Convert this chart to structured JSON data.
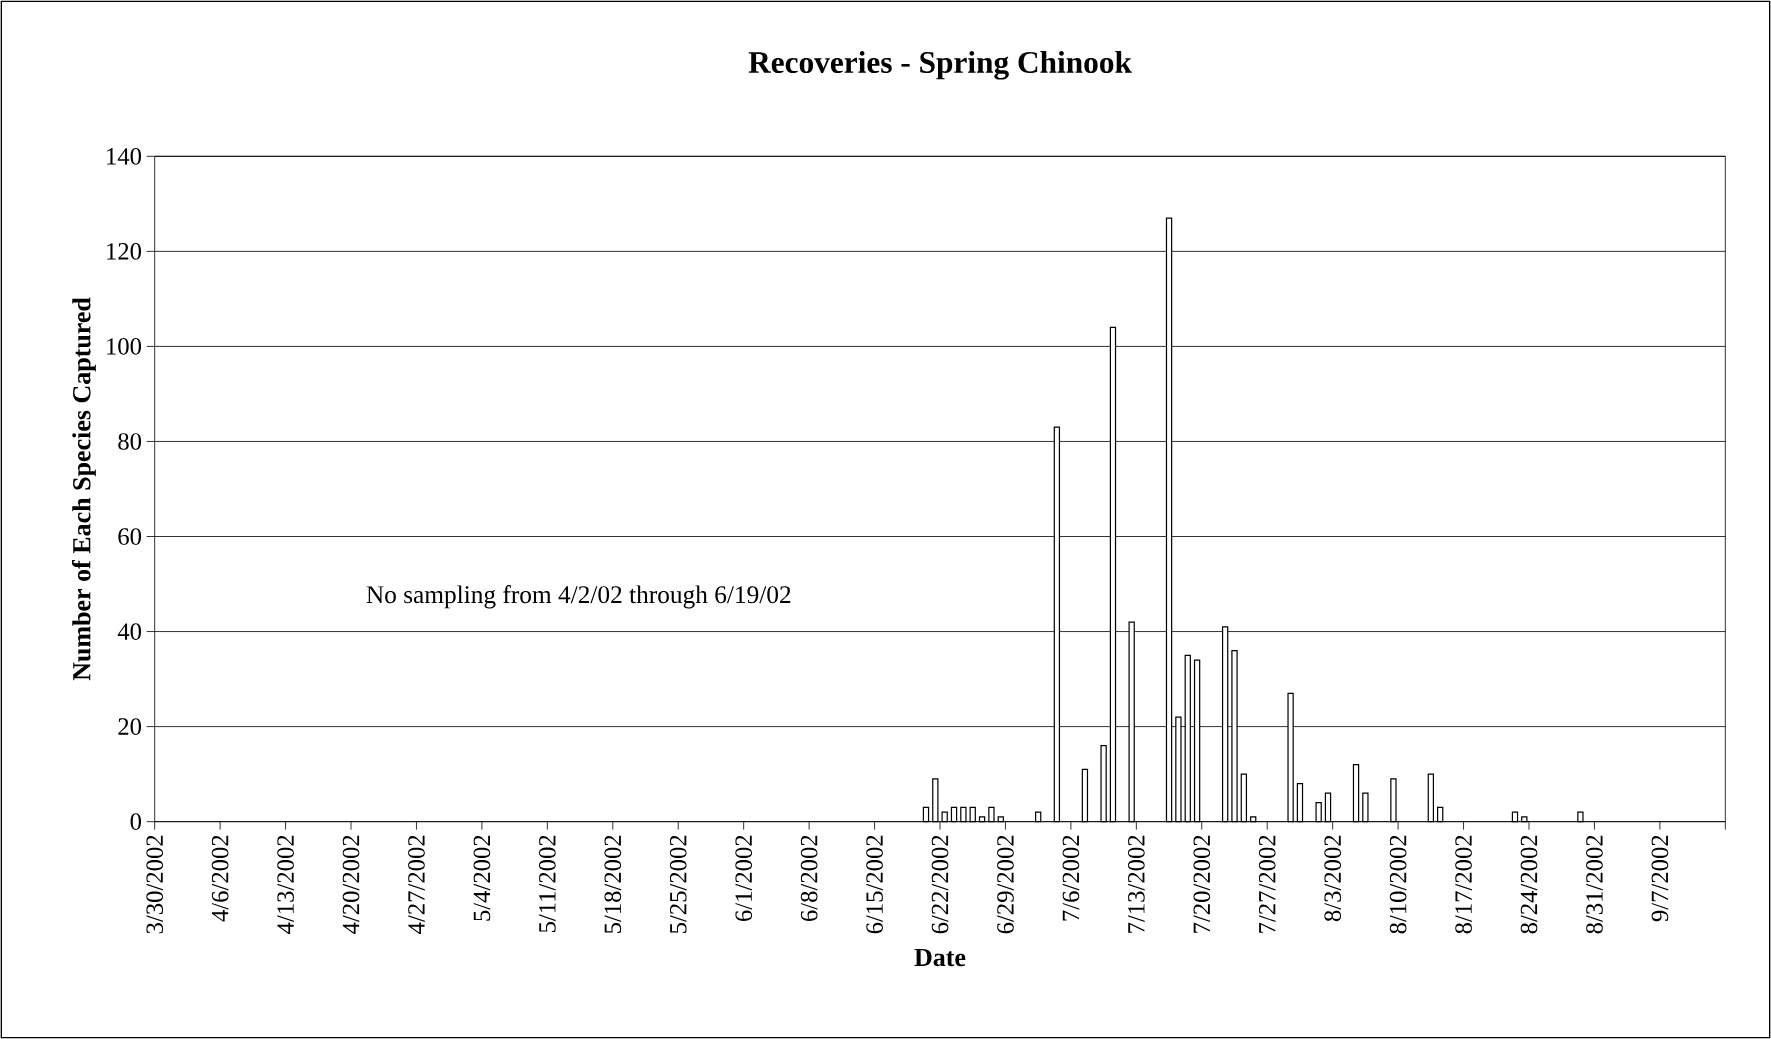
{
  "chart_data": {
    "type": "bar",
    "title": "Recoveries - Spring Chinook",
    "xlabel": "Date",
    "ylabel": "Number of Each Species Captured",
    "x": [
      "2002-06-20",
      "2002-06-21",
      "2002-06-22",
      "2002-06-23",
      "2002-06-24",
      "2002-06-25",
      "2002-06-26",
      "2002-06-27",
      "2002-06-28",
      "2002-07-02",
      "2002-07-04",
      "2002-07-07",
      "2002-07-09",
      "2002-07-10",
      "2002-07-12",
      "2002-07-16",
      "2002-07-17",
      "2002-07-18",
      "2002-07-19",
      "2002-07-22",
      "2002-07-23",
      "2002-07-24",
      "2002-07-25",
      "2002-07-29",
      "2002-07-30",
      "2002-08-01",
      "2002-08-02",
      "2002-08-05",
      "2002-08-06",
      "2002-08-09",
      "2002-08-13",
      "2002-08-14",
      "2002-08-22",
      "2002-08-23",
      "2002-08-29"
    ],
    "values": [
      3,
      9,
      2,
      3,
      3,
      3,
      1,
      3,
      1,
      2,
      83,
      11,
      16,
      104,
      42,
      127,
      22,
      35,
      34,
      41,
      36,
      10,
      1,
      27,
      8,
      4,
      6,
      12,
      6,
      9,
      10,
      3,
      2,
      1,
      2
    ],
    "color": "#ffffff",
    "xlim": [
      "2002-03-30",
      "2002-09-14"
    ],
    "xticks": [
      {
        "value": "2002-03-30",
        "label": "3/30/2002"
      },
      {
        "value": "2002-04-06",
        "label": "4/6/2002"
      },
      {
        "value": "2002-04-13",
        "label": "4/13/2002"
      },
      {
        "value": "2002-04-20",
        "label": "4/20/2002"
      },
      {
        "value": "2002-04-27",
        "label": "4/27/2002"
      },
      {
        "value": "2002-05-04",
        "label": "5/4/2002"
      },
      {
        "value": "2002-05-11",
        "label": "5/11/2002"
      },
      {
        "value": "2002-05-18",
        "label": "5/18/2002"
      },
      {
        "value": "2002-05-25",
        "label": "5/25/2002"
      },
      {
        "value": "2002-06-01",
        "label": "6/1/2002"
      },
      {
        "value": "2002-06-08",
        "label": "6/8/2002"
      },
      {
        "value": "2002-06-15",
        "label": "6/15/2002"
      },
      {
        "value": "2002-06-22",
        "label": "6/22/2002"
      },
      {
        "value": "2002-06-29",
        "label": "6/29/2002"
      },
      {
        "value": "2002-07-06",
        "label": "7/6/2002"
      },
      {
        "value": "2002-07-13",
        "label": "7/13/2002"
      },
      {
        "value": "2002-07-20",
        "label": "7/20/2002"
      },
      {
        "value": "2002-07-27",
        "label": "7/27/2002"
      },
      {
        "value": "2002-08-03",
        "label": "8/3/2002"
      },
      {
        "value": "2002-08-10",
        "label": "8/10/2002"
      },
      {
        "value": "2002-08-17",
        "label": "8/17/2002"
      },
      {
        "value": "2002-08-24",
        "label": "8/24/2002"
      },
      {
        "value": "2002-08-31",
        "label": "8/31/2002"
      },
      {
        "value": "2002-09-07",
        "label": "9/7/2002"
      },
      {
        "value": "2002-09-14",
        "label": null
      }
    ],
    "ylim": [
      0,
      140
    ],
    "yticks": [
      0,
      20,
      40,
      60,
      80,
      100,
      120,
      140
    ],
    "grid": "y",
    "annotations": [
      "No sampling from 4/2/02 through 6/19/02"
    ]
  }
}
